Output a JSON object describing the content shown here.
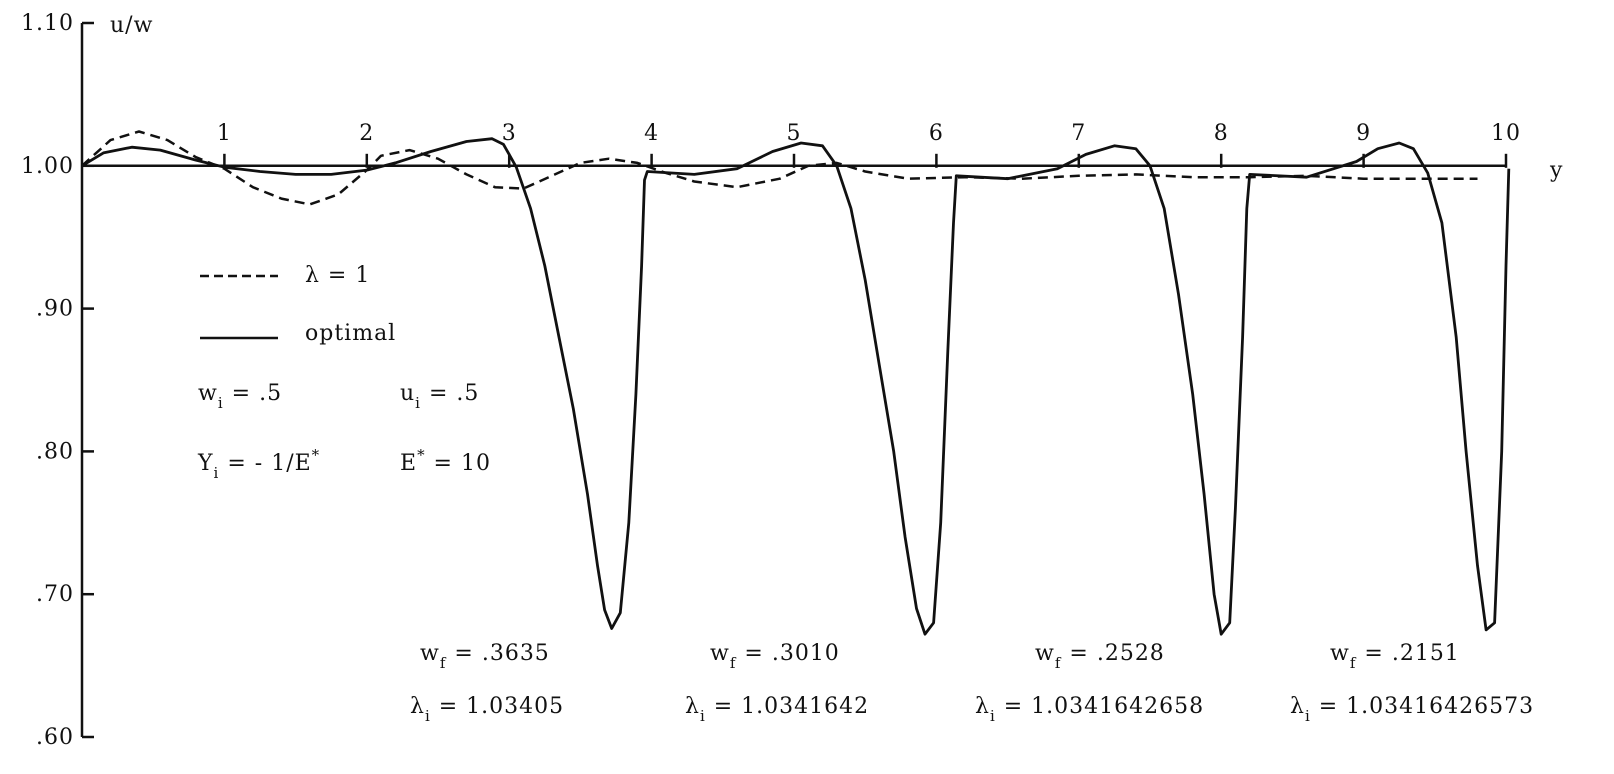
{
  "chart_data": {
    "type": "line",
    "xlabel": "y",
    "ylabel": "u/w",
    "xlim": [
      0,
      10
    ],
    "ylim": [
      0.6,
      1.1
    ],
    "grid": false,
    "x_ticks": [
      "1",
      "2",
      "3",
      "4",
      "5",
      "6",
      "7",
      "8",
      "9",
      "10"
    ],
    "y_ticks": [
      {
        "label": "1.10",
        "value": 1.1
      },
      {
        "label": "1.00",
        "value": 1.0
      },
      {
        "label": ".90",
        "value": 0.9
      },
      {
        "label": ".80",
        "value": 0.8
      },
      {
        "label": ".70",
        "value": 0.7
      },
      {
        "label": ".60",
        "value": 0.6
      }
    ],
    "legend": {
      "placement": "left",
      "entries": [
        {
          "label": "λ = 1",
          "style": "dashed"
        },
        {
          "label": "optimal",
          "style": "solid"
        }
      ]
    },
    "parameters": {
      "line1": [
        "w",
        "i",
        " = .5",
        "u",
        "i",
        " = .5"
      ],
      "line2": [
        "Y",
        "i",
        " = - 1/E",
        "*",
        "E",
        "*",
        " = 10"
      ]
    },
    "annotations": [
      {
        "wf_label": "w",
        "wf_sub": "f",
        "wf_value": " = .3635",
        "lam_label": "λ",
        "lam_sub": "i",
        "lam_value": " = 1.03405"
      },
      {
        "wf_label": "w",
        "wf_sub": "f",
        "wf_value": " = .3010",
        "lam_label": "λ",
        "lam_sub": "i",
        "lam_value": " = 1.0341642"
      },
      {
        "wf_label": "w",
        "wf_sub": "f",
        "wf_value": " = .2528",
        "lam_label": "λ",
        "lam_sub": "i",
        "lam_value": " = 1.0341642658"
      },
      {
        "wf_label": "w",
        "wf_sub": "f",
        "wf_value": " = .2151",
        "lam_label": "λ",
        "lam_sub": "i",
        "lam_value": " = 1.03416426573"
      }
    ],
    "series": [
      {
        "style": "dashed",
        "points": [
          [
            0,
            1.0
          ],
          [
            0.2,
            1.018
          ],
          [
            0.4,
            1.024
          ],
          [
            0.6,
            1.018
          ],
          [
            0.8,
            1.006
          ],
          [
            1.0,
            0.998
          ],
          [
            1.2,
            0.985
          ],
          [
            1.4,
            0.977
          ],
          [
            1.6,
            0.973
          ],
          [
            1.8,
            0.98
          ],
          [
            2.0,
            0.997
          ],
          [
            2.1,
            1.007
          ],
          [
            2.3,
            1.011
          ],
          [
            2.5,
            1.005
          ],
          [
            2.7,
            0.994
          ],
          [
            2.9,
            0.985
          ],
          [
            3.1,
            0.984
          ],
          [
            3.3,
            0.993
          ],
          [
            3.5,
            1.002
          ],
          [
            3.7,
            1.005
          ],
          [
            3.9,
            1.002
          ],
          [
            4.1,
            0.995
          ],
          [
            4.3,
            0.989
          ],
          [
            4.6,
            0.985
          ],
          [
            4.9,
            0.991
          ],
          [
            5.1,
            1.0
          ],
          [
            5.3,
            1.002
          ],
          [
            5.5,
            0.996
          ],
          [
            5.8,
            0.991
          ],
          [
            6.2,
            0.992
          ],
          [
            6.6,
            0.991
          ],
          [
            7.0,
            0.993
          ],
          [
            7.4,
            0.994
          ],
          [
            7.8,
            0.992
          ],
          [
            8.2,
            0.992
          ],
          [
            8.6,
            0.993
          ],
          [
            9.0,
            0.991
          ],
          [
            9.4,
            0.991
          ],
          [
            9.8,
            0.991
          ]
        ]
      },
      {
        "style": "solid",
        "points": [
          [
            0,
            1.0
          ],
          [
            0.15,
            1.009
          ],
          [
            0.35,
            1.013
          ],
          [
            0.55,
            1.011
          ],
          [
            0.8,
            1.004
          ],
          [
            1.0,
            0.999
          ],
          [
            1.25,
            0.996
          ],
          [
            1.5,
            0.994
          ],
          [
            1.75,
            0.994
          ],
          [
            2.0,
            0.997
          ],
          [
            2.2,
            1.002
          ],
          [
            2.45,
            1.01
          ],
          [
            2.7,
            1.017
          ],
          [
            2.88,
            1.019
          ],
          [
            2.96,
            1.015
          ],
          [
            3.05,
            0.999
          ],
          [
            3.15,
            0.97
          ],
          [
            3.25,
            0.93
          ],
          [
            3.35,
            0.88
          ],
          [
            3.45,
            0.83
          ],
          [
            3.55,
            0.77
          ],
          [
            3.62,
            0.72
          ],
          [
            3.67,
            0.689
          ],
          [
            3.72,
            0.676
          ],
          [
            3.78,
            0.687
          ],
          [
            3.84,
            0.75
          ],
          [
            3.89,
            0.84
          ],
          [
            3.93,
            0.93
          ],
          [
            3.95,
            0.99
          ],
          [
            3.97,
            0.996
          ],
          [
            4.3,
            0.994
          ],
          [
            4.6,
            0.998
          ],
          [
            4.85,
            1.01
          ],
          [
            5.05,
            1.016
          ],
          [
            5.2,
            1.014
          ],
          [
            5.3,
            1.0
          ],
          [
            5.4,
            0.97
          ],
          [
            5.5,
            0.92
          ],
          [
            5.6,
            0.86
          ],
          [
            5.7,
            0.8
          ],
          [
            5.78,
            0.74
          ],
          [
            5.86,
            0.69
          ],
          [
            5.92,
            0.672
          ],
          [
            5.98,
            0.68
          ],
          [
            6.03,
            0.75
          ],
          [
            6.08,
            0.87
          ],
          [
            6.12,
            0.96
          ],
          [
            6.14,
            0.993
          ],
          [
            6.5,
            0.991
          ],
          [
            6.85,
            0.998
          ],
          [
            7.05,
            1.008
          ],
          [
            7.25,
            1.014
          ],
          [
            7.4,
            1.012
          ],
          [
            7.5,
            1.0
          ],
          [
            7.6,
            0.97
          ],
          [
            7.7,
            0.91
          ],
          [
            7.8,
            0.84
          ],
          [
            7.88,
            0.77
          ],
          [
            7.95,
            0.7
          ],
          [
            8.0,
            0.672
          ],
          [
            8.06,
            0.68
          ],
          [
            8.1,
            0.76
          ],
          [
            8.15,
            0.88
          ],
          [
            8.18,
            0.97
          ],
          [
            8.2,
            0.994
          ],
          [
            8.6,
            0.992
          ],
          [
            8.95,
            1.003
          ],
          [
            9.1,
            1.012
          ],
          [
            9.25,
            1.016
          ],
          [
            9.35,
            1.012
          ],
          [
            9.45,
            0.995
          ],
          [
            9.55,
            0.96
          ],
          [
            9.65,
            0.88
          ],
          [
            9.72,
            0.8
          ],
          [
            9.8,
            0.72
          ],
          [
            9.86,
            0.675
          ],
          [
            9.92,
            0.68
          ],
          [
            9.97,
            0.8
          ],
          [
            10.0,
            0.93
          ],
          [
            10.02,
            0.998
          ]
        ]
      }
    ]
  }
}
